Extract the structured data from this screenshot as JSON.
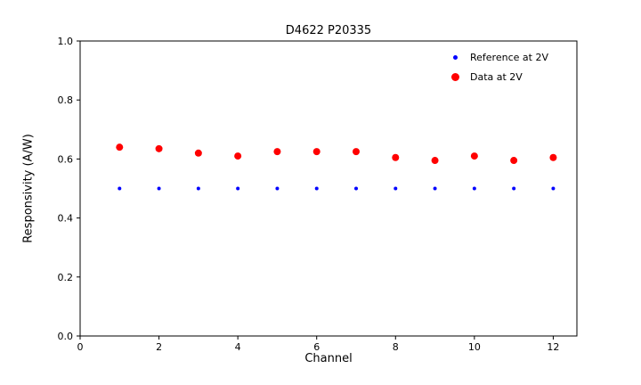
{
  "chart_data": {
    "type": "scatter",
    "title": "D4622 P20335",
    "xlabel": "Channel",
    "ylabel": "Responsivity (A/W)",
    "xlim": [
      0,
      12.6
    ],
    "ylim": [
      0,
      1.0
    ],
    "xtick_labels": [
      "0",
      "2",
      "4",
      "6",
      "8",
      "10",
      "12"
    ],
    "ytick_labels": [
      "0.0",
      "0.2",
      "0.4",
      "0.6",
      "0.8",
      "1.0"
    ],
    "grid": false,
    "legend_position": "upper right",
    "x": [
      1,
      2,
      3,
      4,
      5,
      6,
      7,
      8,
      9,
      10,
      11,
      12
    ],
    "series": [
      {
        "name": "Reference at 2V",
        "color": "#0000ff",
        "marker_radius": 2,
        "values": [
          0.5,
          0.5,
          0.5,
          0.5,
          0.5,
          0.5,
          0.5,
          0.5,
          0.5,
          0.5,
          0.5,
          0.5
        ]
      },
      {
        "name": "Data at 2V",
        "color": "#ff0000",
        "marker_radius": 4,
        "values": [
          0.64,
          0.635,
          0.62,
          0.61,
          0.625,
          0.625,
          0.625,
          0.605,
          0.595,
          0.61,
          0.595,
          0.605
        ]
      }
    ]
  }
}
